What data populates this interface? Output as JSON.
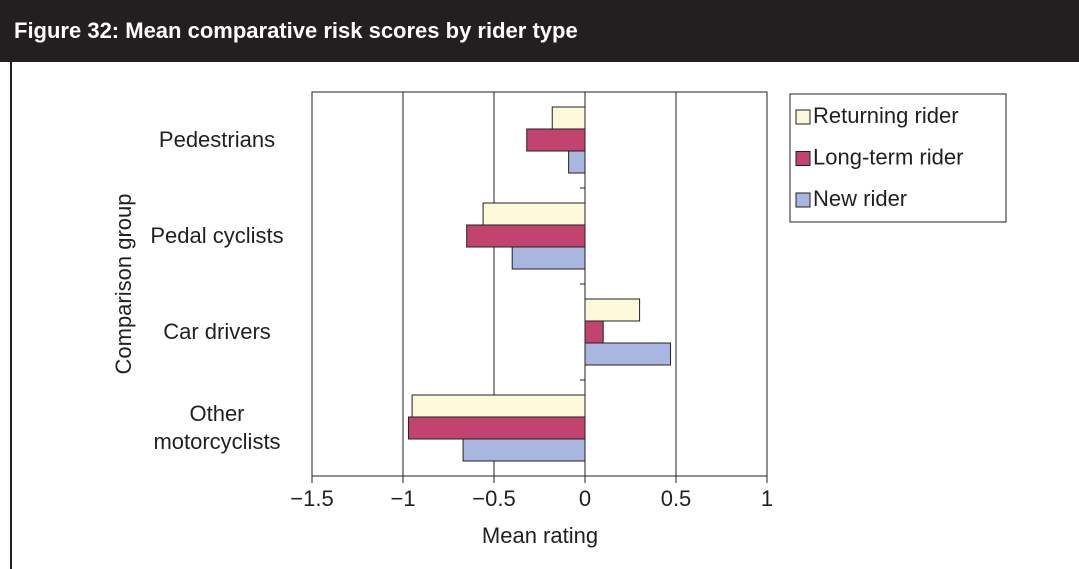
{
  "chart_data": {
    "type": "bar",
    "orientation": "horizontal",
    "title": "Figure 32:  Mean comparative risk scores by rider type",
    "xlabel": "Mean rating",
    "ylabel": "Comparison group",
    "categories": [
      "Pedestrians",
      "Pedal cyclists",
      "Car drivers",
      "Other motorcyclists"
    ],
    "series": [
      {
        "name": "Returning rider",
        "color": "#fdf8d9",
        "values": [
          -0.18,
          -0.56,
          0.3,
          -0.95
        ]
      },
      {
        "name": "Long-term rider",
        "color": "#c0446f",
        "values": [
          -0.32,
          -0.65,
          0.1,
          -0.97
        ]
      },
      {
        "name": "New rider",
        "color": "#a9b7e0",
        "values": [
          -0.09,
          -0.4,
          0.47,
          -0.67
        ]
      }
    ],
    "xlim": [
      -1.5,
      1
    ],
    "xticks": [
      {
        "value": -1.5,
        "label": "−1.5"
      },
      {
        "value": -1,
        "label": "−1"
      },
      {
        "value": -0.5,
        "label": "−0.5"
      },
      0,
      0.5,
      1
    ],
    "grid": true,
    "legend": "right"
  }
}
